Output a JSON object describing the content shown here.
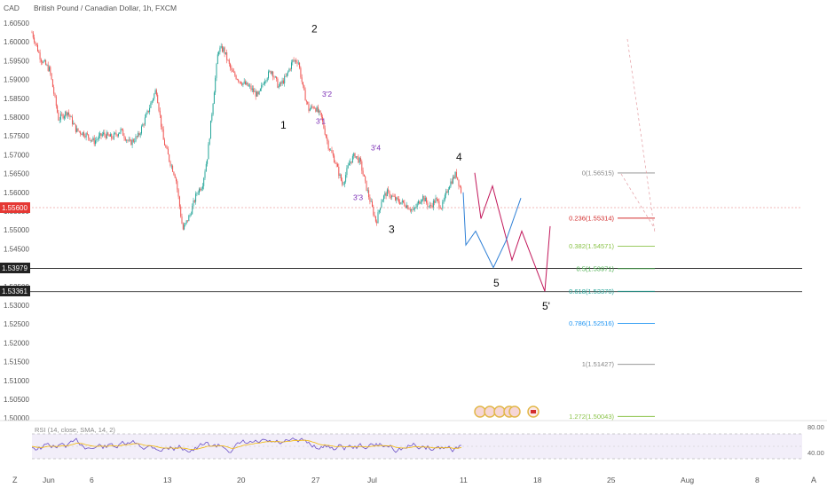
{
  "header": {
    "currency": "CAD",
    "title": "British Pound / Canadian Dollar, 1h, FXCM"
  },
  "price_axis": {
    "labels": [
      "1.60500",
      "1.60000",
      "1.59500",
      "1.59000",
      "1.58500",
      "1.58000",
      "1.57500",
      "1.57000",
      "1.56500",
      "1.56000",
      "1.55500",
      "1.55000",
      "1.54500",
      "1.54000",
      "1.53500",
      "1.53000",
      "1.52500",
      "1.52000",
      "1.51500",
      "1.51000",
      "1.50500",
      "1.50000"
    ],
    "current_price": "1.55600",
    "level_tags": [
      "1.53979",
      "1.53361"
    ]
  },
  "time_axis": {
    "labels": [
      "Jun",
      "6",
      "13",
      "20",
      "27",
      "Jul",
      "11",
      "18",
      "25",
      "Aug",
      "8"
    ],
    "left_icon": "Z",
    "right_icon": "A"
  },
  "chart_data": {
    "type": "line",
    "title": "British Pound / Canadian Dollar, 1h, FXCM",
    "ylim": [
      1.4985,
      1.608
    ],
    "price_path": [
      [
        0,
        1.6025
      ],
      [
        10,
        1.5955
      ],
      [
        20,
        1.5925
      ],
      [
        30,
        1.5795
      ],
      [
        40,
        1.5815
      ],
      [
        50,
        1.5765
      ],
      [
        60,
        1.5755
      ],
      [
        70,
        1.5735
      ],
      [
        80,
        1.5755
      ],
      [
        90,
        1.5745
      ],
      [
        100,
        1.5765
      ],
      [
        110,
        1.573
      ],
      [
        120,
        1.575
      ],
      [
        130,
        1.581
      ],
      [
        140,
        1.5875
      ],
      [
        148,
        1.574
      ],
      [
        155,
        1.5685
      ],
      [
        162,
        1.564
      ],
      [
        170,
        1.55
      ],
      [
        178,
        1.554
      ],
      [
        186,
        1.56
      ],
      [
        192,
        1.562
      ],
      [
        198,
        1.57
      ],
      [
        204,
        1.584
      ],
      [
        210,
        1.598
      ],
      [
        216,
        1.598
      ],
      [
        225,
        1.592
      ],
      [
        235,
        1.5895
      ],
      [
        245,
        1.588
      ],
      [
        255,
        1.5855
      ],
      [
        262,
        1.59
      ],
      [
        270,
        1.5925
      ],
      [
        278,
        1.588
      ],
      [
        286,
        1.5905
      ],
      [
        294,
        1.595
      ],
      [
        300,
        1.595
      ],
      [
        306,
        1.587
      ],
      [
        312,
        1.582
      ],
      [
        318,
        1.583
      ],
      [
        326,
        1.58
      ],
      [
        334,
        1.5725
      ],
      [
        342,
        1.568
      ],
      [
        350,
        1.562
      ],
      [
        358,
        1.568
      ],
      [
        364,
        1.57
      ],
      [
        370,
        1.568
      ],
      [
        376,
        1.562
      ],
      [
        382,
        1.557
      ],
      [
        388,
        1.552
      ],
      [
        394,
        1.558
      ],
      [
        400,
        1.56
      ],
      [
        410,
        1.558
      ],
      [
        420,
        1.557
      ],
      [
        430,
        1.555
      ],
      [
        440,
        1.559
      ],
      [
        448,
        1.556
      ],
      [
        455,
        1.558
      ],
      [
        462,
        1.556
      ],
      [
        470,
        1.562
      ],
      [
        478,
        1.565
      ],
      [
        484,
        1.56
      ]
    ],
    "projection_red": [
      [
        499,
        1.5652
      ],
      [
        506,
        1.553
      ],
      [
        519,
        1.5617
      ],
      [
        541,
        1.542
      ],
      [
        552,
        1.5497
      ],
      [
        578,
        1.5337
      ],
      [
        584,
        1.551
      ]
    ],
    "projection_blue": [
      [
        486,
        1.56
      ],
      [
        489,
        1.546
      ],
      [
        500,
        1.5497
      ],
      [
        520,
        1.54
      ],
      [
        534,
        1.547
      ],
      [
        551,
        1.5585
      ]
    ],
    "wave_labels": [
      {
        "label": "1",
        "x": 280,
        "price": 1.5769
      },
      {
        "label": "2",
        "x": 315,
        "price": 1.6025
      },
      {
        "label": "3",
        "x": 402,
        "price": 1.5492
      },
      {
        "label": "4",
        "x": 478,
        "price": 1.5685
      },
      {
        "label": "5",
        "x": 520,
        "price": 1.535
      },
      {
        "label": "5'",
        "x": 575,
        "price": 1.5288
      }
    ],
    "sub_labels": [
      {
        "label": "3'1",
        "x": 320,
        "price": 1.5782
      },
      {
        "label": "3'2",
        "x": 327,
        "price": 1.5854
      },
      {
        "label": "3'3",
        "x": 362,
        "price": 1.5579
      },
      {
        "label": "3'4",
        "x": 382,
        "price": 1.5712
      }
    ],
    "fib_levels": [
      {
        "label": "0(1.56515)",
        "price": 1.56515,
        "color": "#888888"
      },
      {
        "label": "0.236(1.55314)",
        "price": 1.55314,
        "color": "#d32f2f"
      },
      {
        "label": "0.382(1.54571)",
        "price": 1.54571,
        "color": "#8bc34a"
      },
      {
        "label": "0.5(1.53971)",
        "price": 1.53971,
        "color": "#4caf50"
      },
      {
        "label": "0.618(1.53370)",
        "price": 1.5337,
        "color": "#26a69a"
      },
      {
        "label": "0.786(1.52516)",
        "price": 1.52516,
        "color": "#2196f3"
      },
      {
        "label": "1(1.51427)",
        "price": 1.51427,
        "color": "#888888"
      },
      {
        "label": "1.272(1.50043)",
        "price": 1.50043,
        "color": "#8bc34a"
      }
    ],
    "horizontal_levels": [
      1.53979,
      1.53361
    ],
    "rsi": {
      "label": "RSI (14, close, SMA, 14, 2)",
      "upper": "80.00",
      "lower": "40.00"
    }
  }
}
